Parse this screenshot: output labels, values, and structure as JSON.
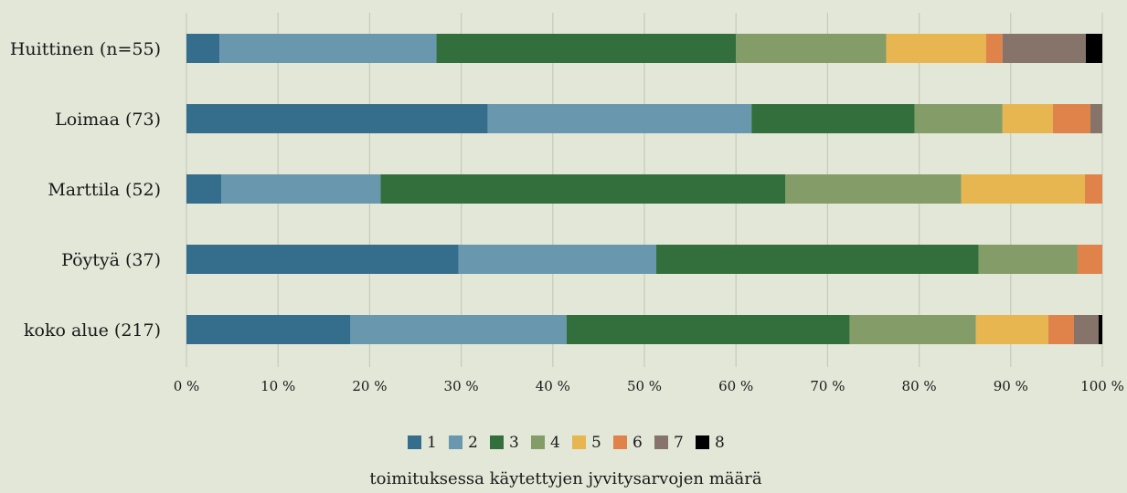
{
  "chart_data": {
    "type": "bar",
    "orientation": "horizontal",
    "stacked": "percent",
    "title": "",
    "xlabel": "",
    "ylabel": "",
    "legend_title": "toimituksessa käytettyjen jyvitysarvojen määrä",
    "legend_position": "bottom",
    "grid": true,
    "xlim": [
      0,
      100
    ],
    "x_ticks": [
      0,
      10,
      20,
      30,
      40,
      50,
      60,
      70,
      80,
      90,
      100
    ],
    "x_tick_labels": [
      "0 %",
      "10 %",
      "20 %",
      "30 %",
      "40 %",
      "50 %",
      "60 %",
      "70 %",
      "80 %",
      "90 %",
      "100 %"
    ],
    "categories": [
      "Huittinen (n=55)",
      "Loimaa (73)",
      "Marttila (52)",
      "Pöytyä (37)",
      "koko alue (217)"
    ],
    "series": [
      {
        "name": "1",
        "color": "#356e8c",
        "values": [
          3.6,
          32.9,
          3.8,
          29.7,
          17.9
        ]
      },
      {
        "name": "2",
        "color": "#6897ae",
        "values": [
          23.7,
          28.8,
          17.4,
          21.6,
          23.6
        ]
      },
      {
        "name": "3",
        "color": "#336f3c",
        "values": [
          32.7,
          17.8,
          44.2,
          35.2,
          30.9
        ]
      },
      {
        "name": "4",
        "color": "#849c67",
        "values": [
          16.4,
          9.6,
          19.2,
          10.8,
          13.8
        ]
      },
      {
        "name": "5",
        "color": "#e7b650",
        "values": [
          10.9,
          5.5,
          13.5,
          0,
          7.9
        ]
      },
      {
        "name": "6",
        "color": "#df834b",
        "values": [
          1.8,
          4.1,
          1.9,
          2.7,
          2.8
        ]
      },
      {
        "name": "7",
        "color": "#86736a",
        "values": [
          9.1,
          1.3,
          0,
          0,
          2.7
        ]
      },
      {
        "name": "8",
        "color": "#000000",
        "values": [
          1.8,
          0,
          0,
          0,
          0.4
        ]
      }
    ]
  }
}
